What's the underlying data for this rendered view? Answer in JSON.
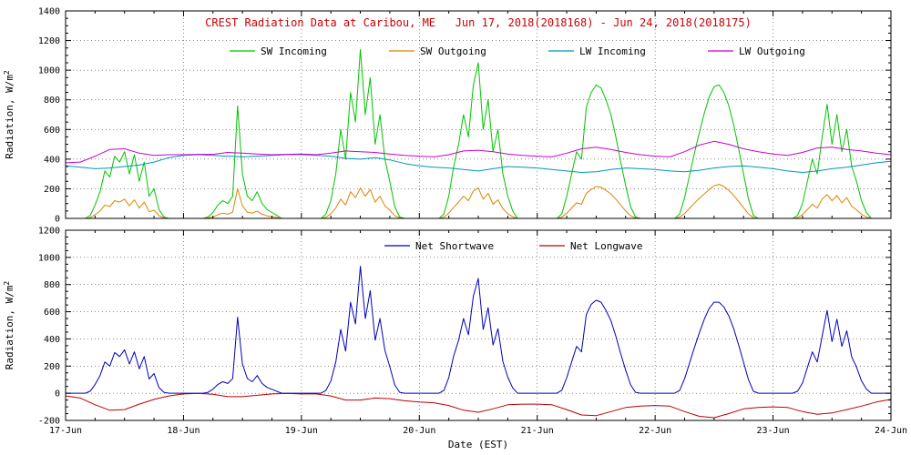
{
  "page": {
    "background": "#ffffff"
  },
  "chart_data": [
    {
      "panel": "top",
      "type": "line",
      "title": "CREST Radiation Data at Caribou, ME   Jun 17, 2018(2018168) - Jun 24, 2018(2018175)",
      "title_color": "#cc0000",
      "ylabel": "Radiation, W/m^2",
      "ylim": [
        0,
        1400
      ],
      "ytick_step": 200,
      "yticks": [
        0,
        200,
        400,
        600,
        800,
        1000,
        1200,
        1400
      ],
      "xlim_days": [
        0,
        7
      ],
      "grid": "dotted",
      "legend_position": "top-inside",
      "series": [
        {
          "name": "SW Incoming",
          "color": "#00c400",
          "dt_hours": 1,
          "values": [
            0,
            0,
            0,
            0,
            0,
            20,
            90,
            180,
            320,
            280,
            420,
            380,
            450,
            300,
            430,
            250,
            380,
            150,
            200,
            60,
            10,
            0,
            0,
            0,
            0,
            0,
            0,
            0,
            0,
            10,
            40,
            90,
            120,
            100,
            150,
            760,
            300,
            150,
            120,
            180,
            100,
            60,
            40,
            20,
            0,
            0,
            0,
            0,
            0,
            0,
            0,
            0,
            0,
            30,
            120,
            300,
            600,
            400,
            850,
            650,
            1140,
            700,
            950,
            500,
            700,
            400,
            250,
            80,
            10,
            0,
            0,
            0,
            0,
            0,
            0,
            0,
            0,
            30,
            150,
            350,
            500,
            700,
            550,
            900,
            1050,
            600,
            800,
            450,
            600,
            300,
            150,
            50,
            0,
            0,
            0,
            0,
            0,
            0,
            0,
            0,
            0,
            30,
            150,
            300,
            450,
            400,
            750,
            850,
            900,
            880,
            800,
            700,
            550,
            380,
            220,
            80,
            10,
            0,
            0,
            0,
            0,
            0,
            0,
            0,
            0,
            30,
            140,
            290,
            440,
            580,
            710,
            820,
            890,
            900,
            850,
            760,
            630,
            470,
            300,
            130,
            20,
            0,
            0,
            0,
            0,
            0,
            0,
            0,
            0,
            20,
            100,
            250,
            400,
            300,
            550,
            770,
            500,
            700,
            450,
            600,
            350,
            250,
            120,
            40,
            0,
            0,
            0,
            0,
            0
          ]
        },
        {
          "name": "SW Outgoing",
          "color": "#dd8500",
          "dt_hours": 1,
          "values": [
            0,
            0,
            0,
            0,
            0,
            5,
            25,
            50,
            90,
            80,
            120,
            110,
            130,
            85,
            125,
            70,
            110,
            45,
            55,
            18,
            3,
            0,
            0,
            0,
            0,
            0,
            0,
            0,
            0,
            3,
            10,
            25,
            35,
            28,
            42,
            200,
            85,
            42,
            35,
            50,
            28,
            17,
            11,
            6,
            0,
            0,
            0,
            0,
            0,
            0,
            0,
            0,
            0,
            8,
            30,
            70,
            130,
            90,
            180,
            140,
            205,
            150,
            195,
            110,
            150,
            85,
            55,
            18,
            3,
            0,
            0,
            0,
            0,
            0,
            0,
            0,
            0,
            8,
            35,
            75,
            110,
            150,
            120,
            185,
            205,
            130,
            170,
            95,
            125,
            65,
            32,
            11,
            0,
            0,
            0,
            0,
            0,
            0,
            0,
            0,
            0,
            8,
            35,
            70,
            105,
            95,
            170,
            195,
            215,
            210,
            190,
            165,
            130,
            90,
            50,
            18,
            3,
            0,
            0,
            0,
            0,
            0,
            0,
            0,
            0,
            8,
            33,
            68,
            103,
            135,
            165,
            195,
            220,
            230,
            215,
            190,
            155,
            115,
            72,
            30,
            5,
            0,
            0,
            0,
            0,
            0,
            0,
            0,
            0,
            5,
            25,
            60,
            95,
            70,
            130,
            160,
            120,
            155,
            105,
            140,
            82,
            58,
            28,
            9,
            0,
            0,
            0,
            0,
            0
          ]
        },
        {
          "name": "LW Incoming",
          "color": "#0095bb",
          "dt_hours": 3,
          "values": [
            355,
            345,
            335,
            340,
            350,
            360,
            380,
            410,
            425,
            430,
            425,
            420,
            415,
            420,
            425,
            430,
            430,
            425,
            420,
            405,
            400,
            410,
            395,
            370,
            355,
            345,
            340,
            330,
            320,
            335,
            350,
            345,
            340,
            330,
            320,
            310,
            315,
            330,
            340,
            335,
            330,
            320,
            315,
            325,
            340,
            350,
            355,
            345,
            335,
            320,
            310,
            320,
            335,
            345,
            360,
            375,
            385
          ]
        },
        {
          "name": "LW Outgoing",
          "color": "#cc00cc",
          "dt_hours": 3,
          "values": [
            375,
            380,
            420,
            465,
            470,
            440,
            425,
            430,
            430,
            432,
            432,
            445,
            440,
            435,
            430,
            432,
            435,
            430,
            440,
            455,
            450,
            445,
            435,
            425,
            420,
            415,
            430,
            455,
            460,
            450,
            435,
            425,
            420,
            415,
            440,
            470,
            480,
            465,
            445,
            430,
            420,
            415,
            450,
            495,
            520,
            500,
            470,
            450,
            435,
            425,
            445,
            475,
            480,
            465,
            455,
            440,
            430
          ]
        }
      ]
    },
    {
      "panel": "bottom",
      "type": "line",
      "ylabel": "Radiation, W/m^2",
      "xlabel": "Date (EST)",
      "ylim": [
        -200,
        1200
      ],
      "ytick_step": 200,
      "yticks": [
        -200,
        0,
        200,
        400,
        600,
        800,
        1000,
        1200
      ],
      "xlim_days": [
        0,
        7
      ],
      "xtick_labels": [
        "17-Jun",
        "18-Jun",
        "19-Jun",
        "20-Jun",
        "21-Jun",
        "22-Jun",
        "23-Jun",
        "24-Jun"
      ],
      "grid": "dotted",
      "legend_position": "top-inside",
      "series": [
        {
          "name": "Net Shortwave",
          "color": "#0000bb",
          "dt_hours": 1,
          "values": [
            0,
            0,
            0,
            0,
            0,
            15,
            65,
            130,
            230,
            200,
            300,
            270,
            320,
            215,
            305,
            180,
            270,
            105,
            145,
            42,
            7,
            0,
            0,
            0,
            0,
            0,
            0,
            0,
            0,
            7,
            30,
            65,
            85,
            72,
            108,
            560,
            215,
            108,
            85,
            130,
            72,
            43,
            29,
            14,
            0,
            0,
            0,
            0,
            0,
            0,
            0,
            0,
            0,
            22,
            90,
            230,
            470,
            310,
            670,
            510,
            935,
            550,
            755,
            390,
            550,
            315,
            195,
            62,
            7,
            0,
            0,
            0,
            0,
            0,
            0,
            0,
            0,
            22,
            115,
            275,
            390,
            550,
            430,
            715,
            845,
            470,
            630,
            355,
            475,
            235,
            118,
            39,
            0,
            0,
            0,
            0,
            0,
            0,
            0,
            0,
            0,
            22,
            115,
            230,
            345,
            305,
            580,
            655,
            685,
            670,
            610,
            535,
            420,
            290,
            170,
            62,
            7,
            0,
            0,
            0,
            0,
            0,
            0,
            0,
            0,
            22,
            107,
            222,
            337,
            445,
            545,
            625,
            670,
            670,
            635,
            570,
            475,
            355,
            228,
            100,
            15,
            0,
            0,
            0,
            0,
            0,
            0,
            0,
            0,
            15,
            75,
            190,
            305,
            230,
            420,
            610,
            380,
            545,
            345,
            460,
            268,
            192,
            92,
            31,
            0,
            0,
            0,
            0,
            0
          ]
        },
        {
          "name": "Net Longwave",
          "color": "#bb0000",
          "dt_hours": 3,
          "values": [
            -20,
            -35,
            -85,
            -125,
            -120,
            -80,
            -45,
            -20,
            -5,
            -2,
            -7,
            -25,
            -25,
            -15,
            -5,
            -2,
            -5,
            -5,
            -20,
            -50,
            -50,
            -35,
            -40,
            -55,
            -65,
            -70,
            -90,
            -125,
            -140,
            -115,
            -85,
            -80,
            -80,
            -85,
            -120,
            -160,
            -165,
            -135,
            -105,
            -95,
            -90,
            -95,
            -135,
            -170,
            -180,
            -150,
            -115,
            -105,
            -100,
            -105,
            -135,
            -155,
            -145,
            -120,
            -95,
            -65,
            -45
          ]
        }
      ]
    }
  ]
}
